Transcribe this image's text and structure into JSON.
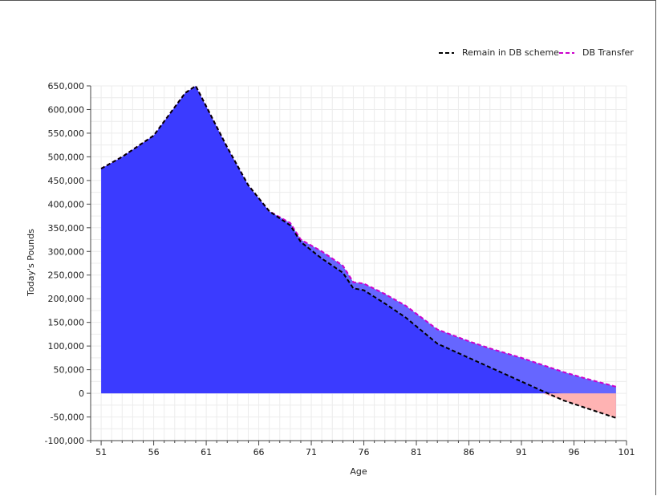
{
  "chart_data": {
    "type": "area",
    "xlabel": "Age",
    "ylabel": "Today's Pounds",
    "xlim": [
      50,
      101
    ],
    "ylim": [
      -100000,
      650000
    ],
    "xticks": [
      51,
      56,
      61,
      66,
      71,
      76,
      81,
      86,
      91,
      96,
      101
    ],
    "yticks": [
      -100000,
      -50000,
      0,
      50000,
      100000,
      150000,
      200000,
      250000,
      300000,
      350000,
      400000,
      450000,
      500000,
      550000,
      600000,
      650000
    ],
    "ytick_labels": [
      "-100,000",
      "-50,000",
      "0",
      "50,000",
      "100,000",
      "150,000",
      "200,000",
      "250,000",
      "300,000",
      "350,000",
      "400,000",
      "450,000",
      "500,000",
      "550,000",
      "600,000",
      "650,000"
    ],
    "grid": true,
    "legend_position": "top-right",
    "legend": [
      {
        "label": "Remain in DB scheme",
        "color": "#000000"
      },
      {
        "label": "DB Transfer",
        "color": "#cc00cc"
      }
    ],
    "colors": {
      "positive_fill": "#3b3bff",
      "gap_fill": "#6666ff",
      "negative_fill": "#ffb3b3",
      "remain_line": "#000000",
      "transfer_line": "#cc00cc"
    },
    "series": [
      {
        "name": "Remain in DB scheme",
        "x": [
          51,
          53,
          56,
          59,
          60,
          63,
          65,
          67,
          69,
          70,
          72,
          74,
          75,
          76,
          78,
          80,
          83,
          86,
          88,
          91,
          93,
          95,
          97,
          100
        ],
        "values": [
          475000,
          500000,
          545000,
          635000,
          650000,
          520000,
          440000,
          385000,
          355000,
          320000,
          285000,
          255000,
          222000,
          218000,
          190000,
          160000,
          105000,
          75000,
          55000,
          25000,
          5000,
          -15000,
          -30000,
          -52000
        ]
      },
      {
        "name": "DB Transfer",
        "x": [
          51,
          53,
          56,
          59,
          60,
          63,
          65,
          67,
          69,
          70,
          72,
          74,
          75,
          76,
          78,
          80,
          83,
          86,
          88,
          91,
          93,
          95,
          97,
          100
        ],
        "values": [
          475000,
          500000,
          545000,
          635000,
          650000,
          520000,
          440000,
          385000,
          360000,
          325000,
          300000,
          270000,
          235000,
          232000,
          210000,
          185000,
          135000,
          110000,
          95000,
          75000,
          60000,
          45000,
          32000,
          14000
        ]
      }
    ]
  }
}
